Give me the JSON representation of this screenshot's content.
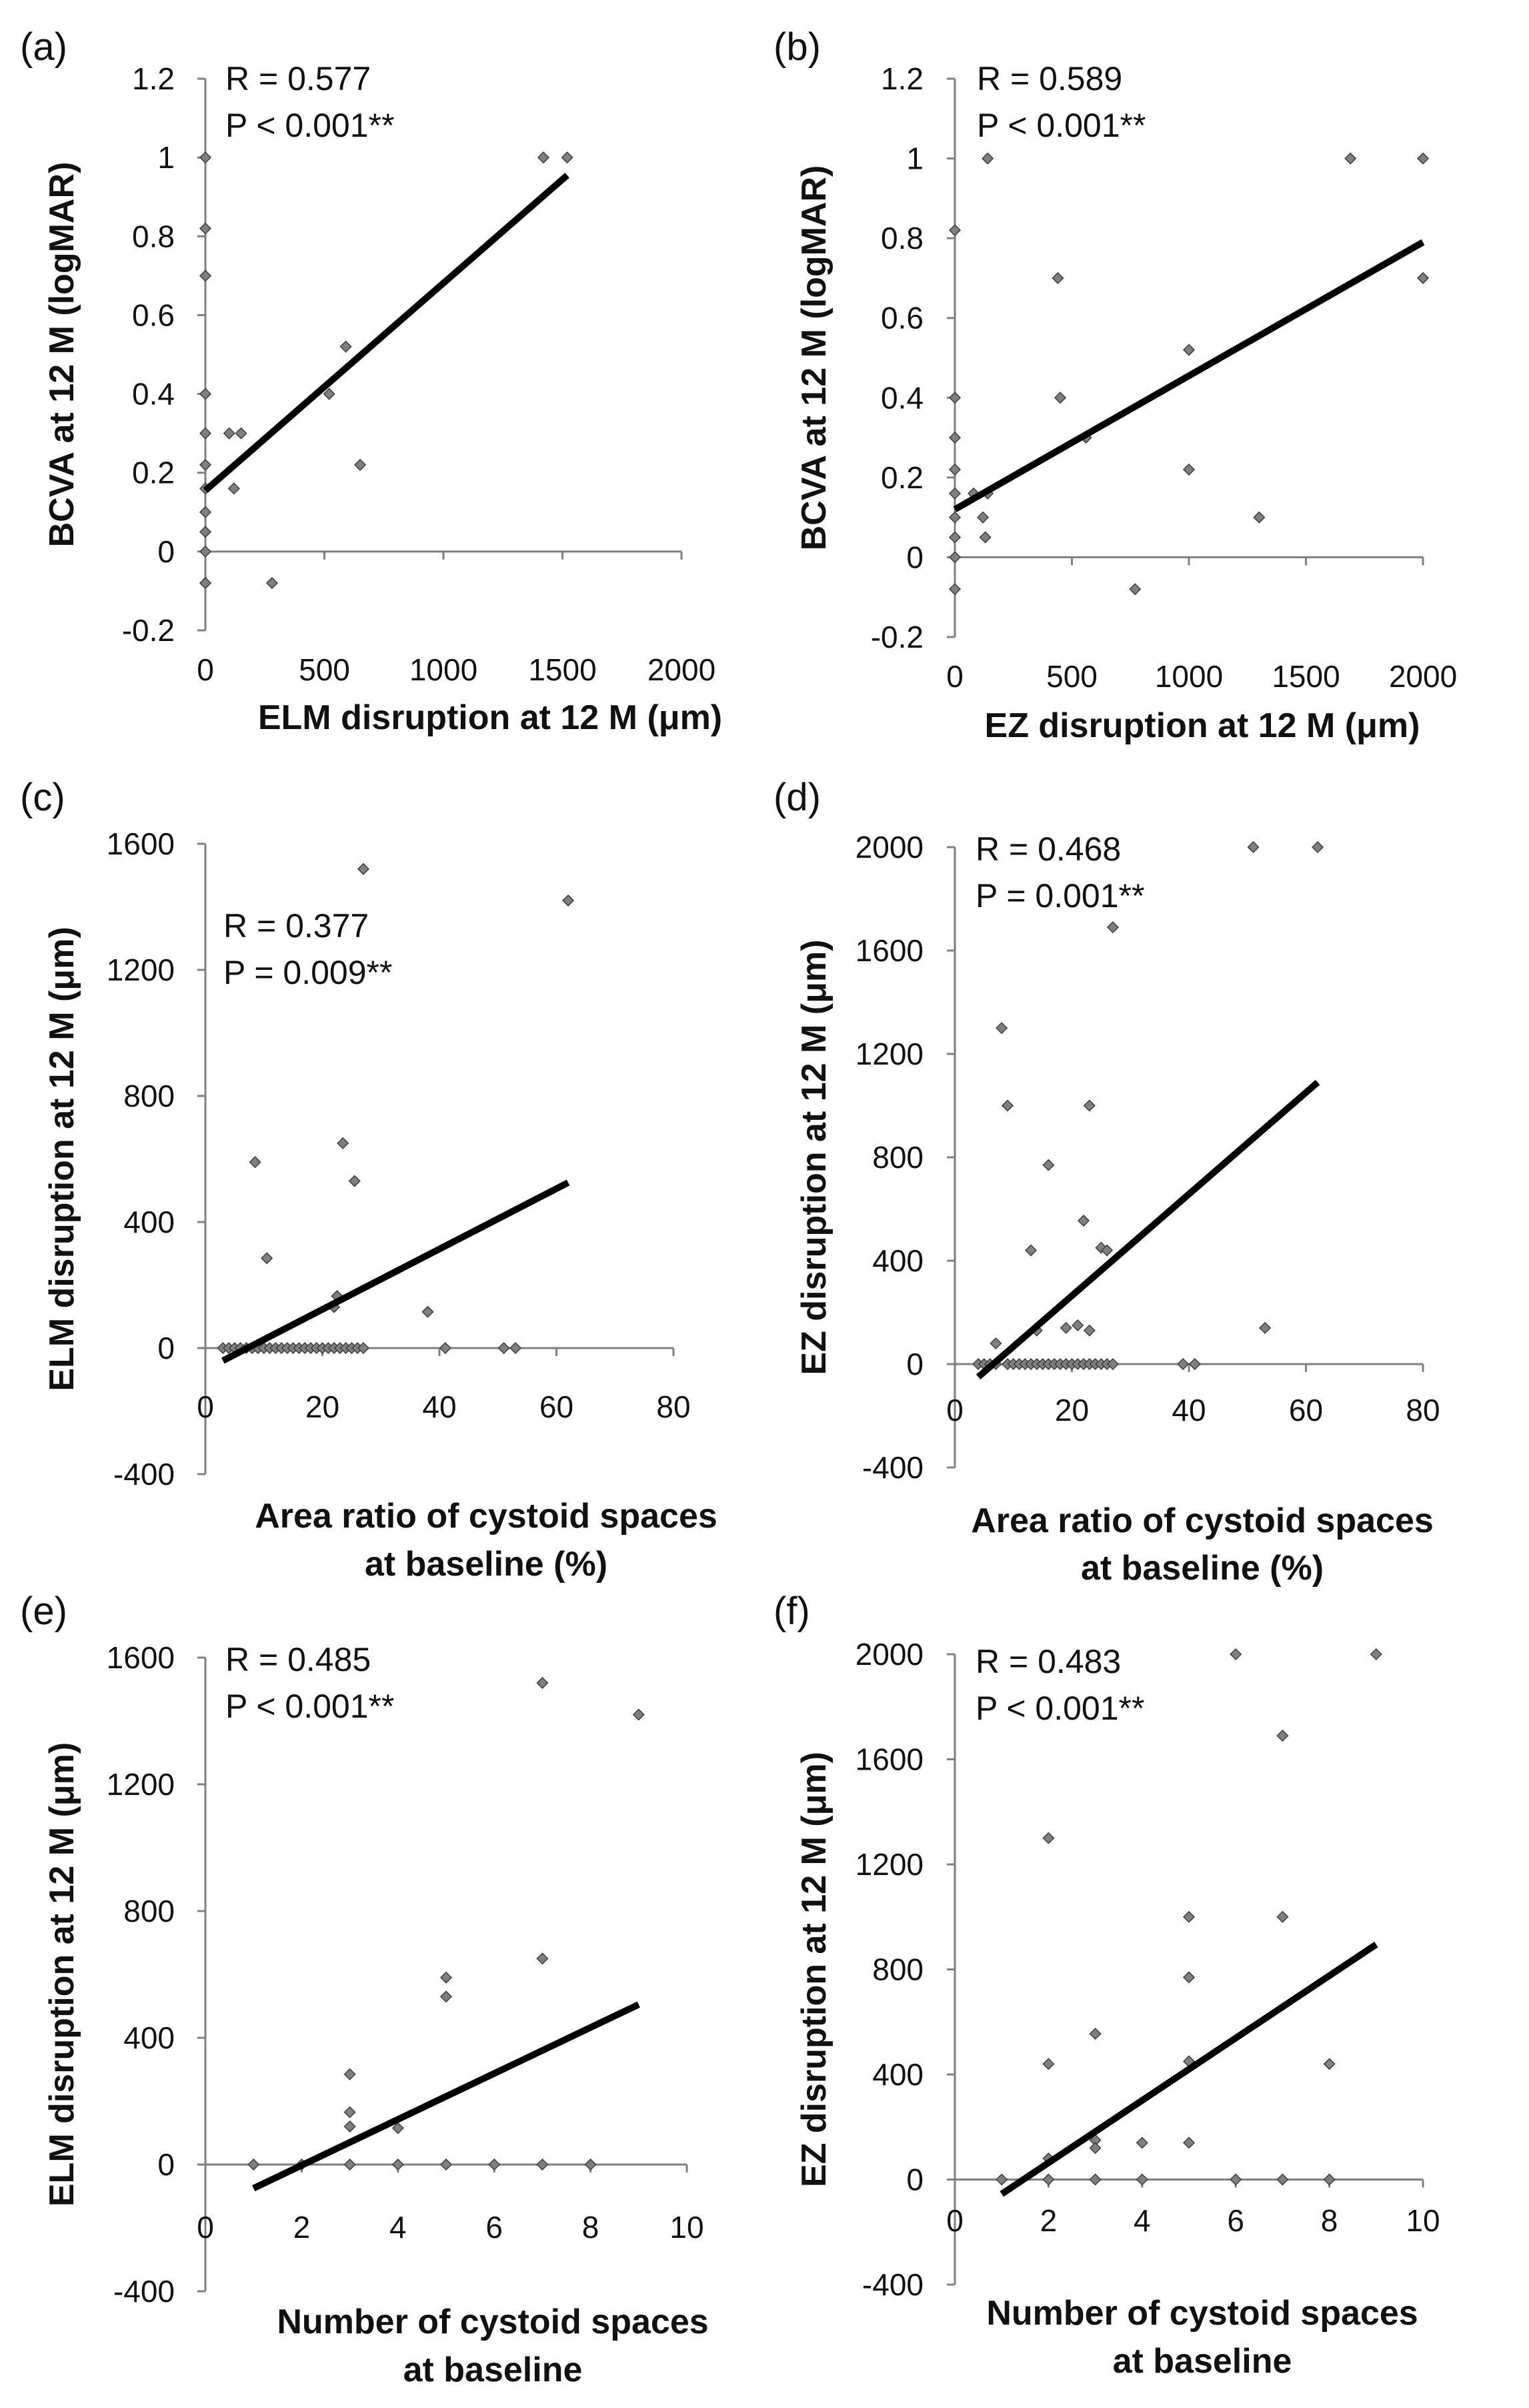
{
  "figure_description": "",
  "chart_data": [
    {
      "panel_label": "(a)",
      "type": "scatter",
      "title": "",
      "xlabel": "ELM disruption at 12 M (μm)",
      "ylabel": "BCVA at 12 M (logMAR)",
      "xlim": [
        0,
        2000
      ],
      "ylim": [
        -0.2,
        1.2
      ],
      "xticks": [
        0,
        500,
        1000,
        1500,
        2000
      ],
      "xtick_labels": [
        "0",
        "500",
        "1000",
        "1500",
        "2000"
      ],
      "yticks": [
        -0.2,
        0,
        0.2,
        0.4,
        0.6,
        0.8,
        1,
        1.2
      ],
      "ytick_labels": [
        "-0.2",
        "0",
        "0.2",
        "0.4",
        "0.6",
        "0.8",
        "1",
        "1.2"
      ],
      "stats": [
        "R = 0.577",
        "P < 0.001**"
      ],
      "trendline": {
        "x": [
          0,
          1520
        ],
        "y": [
          0.155,
          0.955
        ]
      },
      "points": {
        "x": [
          0,
          0,
          0,
          0,
          0,
          0,
          0,
          0,
          0,
          0,
          0,
          0,
          100,
          120,
          150,
          280,
          520,
          590,
          650,
          1420,
          1520
        ],
        "y": [
          1.0,
          0.82,
          0.7,
          0.4,
          0.3,
          0.22,
          0.16,
          0.1,
          0.05,
          0.0,
          -0.08,
          -0.08,
          0.3,
          0.16,
          0.3,
          -0.08,
          0.4,
          0.52,
          0.22,
          1.0,
          1.0
        ]
      },
      "grid": false
    },
    {
      "panel_label": "(b)",
      "type": "scatter",
      "title": "",
      "xlabel": "EZ disruption at 12 M (μm)",
      "ylabel": "BCVA at 12 M (logMAR)",
      "xlim": [
        0,
        2000
      ],
      "ylim": [
        -0.2,
        1.2
      ],
      "xticks": [
        0,
        500,
        1000,
        1500,
        2000
      ],
      "xtick_labels": [
        "0",
        "500",
        "1000",
        "1500",
        "2000"
      ],
      "yticks": [
        -0.2,
        0,
        0.2,
        0.4,
        0.6,
        0.8,
        1,
        1.2
      ],
      "ytick_labels": [
        "-0.2",
        "0",
        "0.2",
        "0.4",
        "0.6",
        "0.8",
        "1",
        "1.2"
      ],
      "stats": [
        "R = 0.589",
        "P < 0.001**"
      ],
      "trendline": {
        "x": [
          0,
          2000
        ],
        "y": [
          0.12,
          0.79
        ]
      },
      "points": {
        "x": [
          0,
          0,
          0,
          0,
          0,
          0,
          0,
          0,
          0,
          80,
          120,
          130,
          140,
          140,
          440,
          450,
          560,
          770,
          1000,
          1000,
          1300,
          1690,
          2000,
          2000
        ],
        "y": [
          0.82,
          0.4,
          0.3,
          0.22,
          0.16,
          0.1,
          0.05,
          0.0,
          -0.08,
          0.16,
          0.1,
          0.05,
          1.0,
          0.16,
          0.7,
          0.4,
          0.3,
          -0.08,
          0.52,
          0.22,
          0.1,
          1.0,
          1.0,
          0.7
        ]
      },
      "grid": false
    },
    {
      "panel_label": "(c)",
      "type": "scatter",
      "title": "",
      "xlabel": "Area ratio of cystoid spaces at baseline (%)",
      "ylabel": "ELM disruption at 12 M (μm)",
      "xlim": [
        0,
        80
      ],
      "ylim": [
        -400,
        1600
      ],
      "xticks": [
        0,
        20,
        40,
        60,
        80
      ],
      "xtick_labels": [
        "0",
        "20",
        "40",
        "60",
        "80"
      ],
      "yticks": [
        -400,
        0,
        400,
        800,
        1200,
        1600
      ],
      "ytick_labels": [
        "-400",
        "0",
        "400",
        "800",
        "1200",
        "1600"
      ],
      "stats": [
        "R = 0.377",
        "P = 0.009**"
      ],
      "trendline": {
        "x": [
          3,
          62
        ],
        "y": [
          -40,
          525
        ]
      },
      "points": {
        "x": [
          3,
          4,
          5,
          6,
          7,
          8,
          9,
          9,
          10,
          11,
          12,
          13,
          14,
          15,
          16,
          17,
          18,
          19,
          20,
          21,
          22,
          23,
          24,
          25,
          26,
          27,
          8.5,
          10.5,
          22.5,
          23.5,
          25.5,
          27,
          22,
          38,
          41,
          51,
          53,
          62
        ],
        "y": [
          0,
          0,
          0,
          0,
          0,
          0,
          0,
          0,
          0,
          0,
          0,
          0,
          0,
          0,
          0,
          0,
          0,
          0,
          0,
          0,
          0,
          0,
          0,
          0,
          0,
          0,
          590,
          285,
          165,
          650,
          530,
          1520,
          130,
          115,
          0,
          0,
          0,
          1420
        ]
      },
      "grid": false
    },
    {
      "panel_label": "(d)",
      "type": "scatter",
      "title": "",
      "xlabel": "Area ratio of cystoid spaces at baseline (%)",
      "ylabel": "EZ disruption at 12 M (μm)",
      "xlim": [
        0,
        80
      ],
      "ylim": [
        -400,
        2000
      ],
      "xticks": [
        0,
        20,
        40,
        60,
        80
      ],
      "xtick_labels": [
        "0",
        "20",
        "40",
        "60",
        "80"
      ],
      "yticks": [
        -400,
        0,
        400,
        800,
        1200,
        1600,
        2000
      ],
      "ytick_labels": [
        "-400",
        "0",
        "400",
        "800",
        "1200",
        "1600",
        "2000"
      ],
      "stats": [
        "R = 0.468",
        "P = 0.001**"
      ],
      "trendline": {
        "x": [
          4,
          62
        ],
        "y": [
          -50,
          1090
        ]
      },
      "points": {
        "x": [
          4,
          5,
          6,
          7,
          9,
          10,
          11,
          12,
          13,
          14,
          15,
          16,
          17,
          18,
          19,
          20,
          21,
          22,
          23,
          24,
          25,
          26,
          27,
          39,
          41,
          7,
          8,
          9,
          13,
          14,
          16,
          19,
          21,
          22,
          23,
          23,
          25,
          26,
          27,
          51,
          53,
          62
        ],
        "y": [
          0,
          0,
          0,
          0,
          0,
          0,
          0,
          0,
          0,
          0,
          0,
          0,
          0,
          0,
          0,
          0,
          0,
          0,
          0,
          0,
          0,
          0,
          0,
          0,
          0,
          80,
          1300,
          1000,
          440,
          130,
          770,
          140,
          150,
          555,
          1000,
          130,
          450,
          440,
          1690,
          2000,
          140,
          2000
        ]
      },
      "grid": false
    },
    {
      "panel_label": "(e)",
      "type": "scatter",
      "title": "",
      "xlabel": "Number of cystoid spaces at baseline",
      "ylabel": "ELM disruption at 12 M (μm)",
      "xlim": [
        0,
        10
      ],
      "ylim": [
        -400,
        1600
      ],
      "xticks": [
        0,
        2,
        4,
        6,
        8,
        10
      ],
      "xtick_labels": [
        "0",
        "2",
        "4",
        "6",
        "8",
        "10"
      ],
      "yticks": [
        -400,
        0,
        400,
        800,
        1200,
        1600
      ],
      "ytick_labels": [
        "-400",
        "0",
        "400",
        "800",
        "1200",
        "1600"
      ],
      "stats": [
        "R = 0.485",
        "P < 0.001**"
      ],
      "trendline": {
        "x": [
          1,
          9
        ],
        "y": [
          -75,
          505
        ]
      },
      "points": {
        "x": [
          1,
          2,
          3,
          3,
          3,
          3,
          4,
          4,
          5,
          5,
          5,
          6,
          7,
          7,
          7,
          8,
          9
        ],
        "y": [
          0,
          0,
          285,
          165,
          120,
          0,
          115,
          0,
          590,
          530,
          0,
          0,
          650,
          1520,
          0,
          0,
          1420
        ]
      },
      "grid": false
    },
    {
      "panel_label": "(f)",
      "type": "scatter",
      "title": "",
      "xlabel": "Number of cystoid spaces at baseline",
      "ylabel": "EZ disruption at 12 M (μm)",
      "xlim": [
        0,
        10
      ],
      "ylim": [
        -400,
        2000
      ],
      "xticks": [
        0,
        2,
        4,
        6,
        8,
        10
      ],
      "xtick_labels": [
        "0",
        "2",
        "4",
        "6",
        "8",
        "10"
      ],
      "yticks": [
        -400,
        0,
        400,
        800,
        1200,
        1600,
        2000
      ],
      "ytick_labels": [
        "-400",
        "0",
        "400",
        "800",
        "1200",
        "1600",
        "2000"
      ],
      "stats": [
        "R = 0.483",
        "P < 0.001**"
      ],
      "trendline": {
        "x": [
          1,
          9
        ],
        "y": [
          -55,
          895
        ]
      },
      "points": {
        "x": [
          1,
          2,
          2,
          2,
          2,
          3,
          3,
          3,
          3,
          4,
          4,
          5,
          5,
          5,
          5,
          6,
          6,
          7,
          7,
          7,
          8,
          8,
          9
        ],
        "y": [
          0,
          1300,
          440,
          80,
          0,
          555,
          150,
          120,
          0,
          140,
          0,
          1000,
          770,
          450,
          140,
          2000,
          0,
          1690,
          1000,
          0,
          440,
          0,
          2000
        ]
      },
      "grid": false
    }
  ]
}
